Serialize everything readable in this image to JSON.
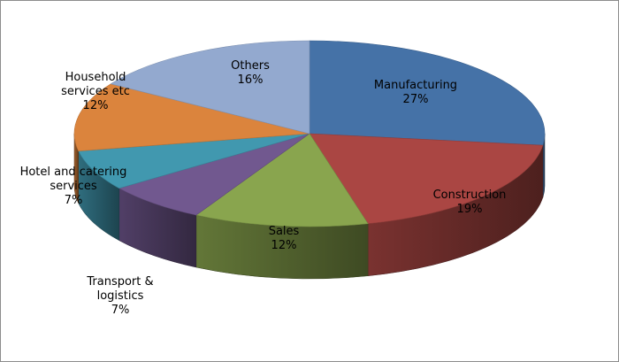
{
  "chart_data": {
    "type": "pie",
    "title": "",
    "slices": [
      {
        "label_lines": [
          "Manufacturing"
        ],
        "value_label": "27%",
        "value": 27,
        "color": "#4572a7"
      },
      {
        "label_lines": [
          "Construction"
        ],
        "value_label": "19%",
        "value": 19,
        "color": "#aa4643"
      },
      {
        "label_lines": [
          "Sales"
        ],
        "value_label": "12%",
        "value": 12,
        "color": "#89a54e"
      },
      {
        "label_lines": [
          "Transport &",
          "logistics"
        ],
        "value_label": "7%",
        "value": 7,
        "color": "#71588f"
      },
      {
        "label_lines": [
          "Hotel and catering",
          "services"
        ],
        "value_label": "7%",
        "value": 7,
        "color": "#4198af"
      },
      {
        "label_lines": [
          "Household",
          "services etc"
        ],
        "value_label": "12%",
        "value": 12,
        "color": "#db843d"
      },
      {
        "label_lines": [
          "Others"
        ],
        "value_label": "16%",
        "value": 16,
        "color": "#93a9cf"
      }
    ],
    "legend": "none",
    "style": "3d-pie"
  }
}
